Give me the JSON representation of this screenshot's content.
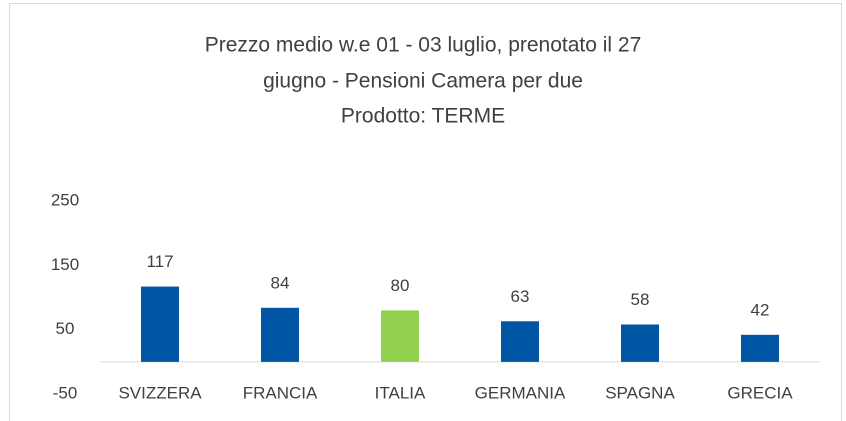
{
  "chart_data": {
    "type": "bar",
    "title": [
      "Prezzo medio w.e 01 - 03 luglio, prenotato il 27",
      "giugno  - Pensioni Camera per due",
      "Prodotto: TERME"
    ],
    "categories": [
      "SVIZZERA",
      "FRANCIA",
      "ITALIA",
      "GERMANIA",
      "SPAGNA",
      "GRECIA"
    ],
    "values": [
      117,
      84,
      80,
      63,
      58,
      42
    ],
    "colors": [
      "#0055a4",
      "#0055a4",
      "#92d050",
      "#0055a4",
      "#0055a4",
      "#0055a4"
    ],
    "ylim": [
      -50,
      250
    ],
    "yticks": [
      -50,
      50,
      150,
      250
    ]
  }
}
